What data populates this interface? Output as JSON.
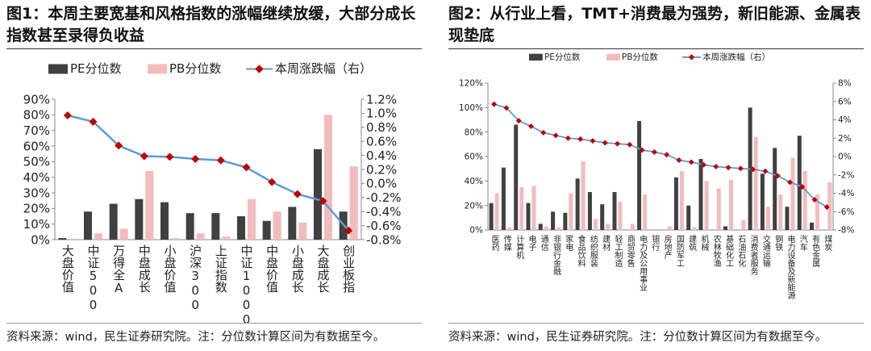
{
  "charts": [
    {
      "title": "图1：本周主要宽基和风格指数的涨幅继续放缓，大部分成长指数甚至录得负收益",
      "footnote": "资料来源：wind，民生证券研究院。注：分位数计算区间为有数据至今。",
      "chart_data": {
        "type": "bar",
        "categories": [
          "大盘价值",
          "中证500",
          "万得全A",
          "中盘成长",
          "小盘价值",
          "沪深300",
          "上证指数",
          "中证1000",
          "中盘价值",
          "小盘成长",
          "大盘成长",
          "创业板指"
        ],
        "series": [
          {
            "name": "PE分位数",
            "type": "bar",
            "axis": "left",
            "color": "#404040",
            "values": [
              1,
              18,
              23,
              26,
              24,
              17,
              17,
              15,
              12,
              21,
              58,
              18
            ]
          },
          {
            "name": "PB分位数",
            "type": "bar",
            "axis": "left",
            "color": "#f2bcbc",
            "values": [
              0,
              4,
              7,
              44,
              1,
              4,
              2,
              26,
              18,
              11,
              80,
              47
            ]
          },
          {
            "name": "本周涨跌幅（右）",
            "type": "line",
            "axis": "right",
            "color": "#5b9bd5",
            "marker_color": "#c00000",
            "values": [
              0.97,
              0.88,
              0.54,
              0.39,
              0.38,
              0.35,
              0.33,
              0.23,
              0.02,
              -0.15,
              -0.25,
              -0.67
            ]
          }
        ],
        "ylim": [
          0,
          90
        ],
        "y_ticks": [
          "0%",
          "10%",
          "20%",
          "30%",
          "40%",
          "50%",
          "60%",
          "70%",
          "80%",
          "90%"
        ],
        "y2lim": [
          -0.8,
          1.2
        ],
        "y2_ticks": [
          "-0.8%",
          "-0.6%",
          "-0.4%",
          "-0.2%",
          "0.0%",
          "0.2%",
          "0.4%",
          "0.6%",
          "0.8%",
          "1.0%",
          "1.2%"
        ],
        "legend_placement": "top",
        "grid": false
      }
    },
    {
      "title": "图2：从行业上看，TMT+消费最为强势，新旧能源、金属表现垫底",
      "footnote": "资料来源：wind，民生证券研究院。注：分位数计算区间为有数据至今。",
      "chart_data": {
        "type": "bar",
        "categories": [
          "医药",
          "传媒",
          "计算机",
          "电子",
          "通信",
          "非银行金融",
          "家电",
          "食品饮料",
          "纺织服装",
          "建材",
          "轻工制造",
          "商贸零售",
          "电力及公用事业",
          "银行",
          "房地产",
          "国防军工",
          "建筑",
          "机械",
          "农林牧渔",
          "基础化工",
          "石油石化",
          "消费者服务",
          "交通运输",
          "钢铁",
          "电力设备及新能源",
          "汽车",
          "有色金属",
          "煤炭"
        ],
        "series": [
          {
            "name": "PE分位数",
            "type": "bar",
            "axis": "left",
            "color": "#404040",
            "values": [
              22,
              51,
              86,
              22,
              5,
              15,
              14,
              42,
              31,
              21,
              31,
              0,
              89,
              0,
              0,
              43,
              20,
              58,
              0,
              3,
              0,
              100,
              46,
              67,
              19,
              77,
              6,
              0
            ]
          },
          {
            "name": "PB分位数",
            "type": "bar",
            "axis": "left",
            "color": "#f2bcbc",
            "values": [
              30,
              2,
              35,
              36,
              3,
              2,
              30,
              56,
              9,
              5,
              23,
              5,
              29,
              0,
              3,
              48,
              2,
              40,
              34,
              41,
              8,
              76,
              19,
              29,
              59,
              48,
              29,
              39
            ]
          },
          {
            "name": "本周涨跌幅（右）",
            "type": "line",
            "axis": "right",
            "color": "#5b9bd5",
            "marker_color": "#c00000",
            "values": [
              5.7,
              5.3,
              3.9,
              3.3,
              2.6,
              2.3,
              2.0,
              1.9,
              1.7,
              1.5,
              1.4,
              1.3,
              0.7,
              0.5,
              0.2,
              -0.4,
              -0.6,
              -0.9,
              -1.1,
              -1.2,
              -1.3,
              -1.4,
              -1.6,
              -2.1,
              -2.8,
              -3.3,
              -4.7,
              -5.5
            ]
          }
        ],
        "ylim": [
          0,
          120
        ],
        "y_ticks": [
          "0%",
          "20%",
          "40%",
          "60%",
          "80%",
          "100%",
          "120%"
        ],
        "y2lim": [
          -8,
          8
        ],
        "y2_ticks": [
          "-8%",
          "-6%",
          "-4%",
          "-2%",
          "0%",
          "2%",
          "4%",
          "6%",
          "8%"
        ],
        "legend_placement": "top",
        "grid": false
      }
    }
  ]
}
